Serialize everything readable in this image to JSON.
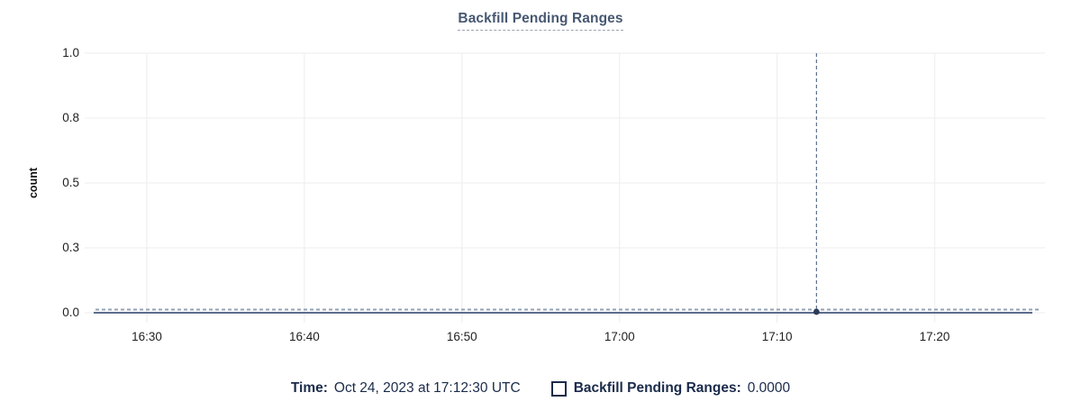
{
  "page": {
    "background": "#ffffff"
  },
  "chart_data": {
    "type": "line",
    "title": "Backfill Pending Ranges",
    "xlabel": "",
    "ylabel": "count",
    "ylim": [
      0,
      1
    ],
    "grid": true,
    "legend_position": "bottom-center",
    "x_domain_minutes_after_1600": [
      26.4,
      87.0
    ],
    "x_ticks": [
      {
        "minute": 30,
        "label": "16:30"
      },
      {
        "minute": 40,
        "label": "16:40"
      },
      {
        "minute": 50,
        "label": "16:50"
      },
      {
        "minute": 60,
        "label": "17:00"
      },
      {
        "minute": 70,
        "label": "17:10"
      },
      {
        "minute": 80,
        "label": "17:20"
      }
    ],
    "y_ticks": [
      {
        "value": 1.0,
        "label": "1.0"
      },
      {
        "value": 0.75,
        "label": "0.8"
      },
      {
        "value": 0.5,
        "label": "0.5"
      },
      {
        "value": 0.25,
        "label": "0.3"
      },
      {
        "value": 0.0,
        "label": "0.0"
      }
    ],
    "series": [
      {
        "name": "Backfill Pending Ranges",
        "constant_value": 0,
        "note": "flat line at zero across entire time window"
      }
    ],
    "hover": {
      "minute_after_1600": 72.5,
      "time_label": "Oct 24, 2023 at 17:12:30 UTC",
      "value": 0
    },
    "colors": {
      "title": "#475872",
      "grid": "#f0f0f0",
      "series_solid": "#46597c",
      "series_dashed": "#93a1b4",
      "crosshair": "#5b6f8c",
      "dot": "#2c3c59",
      "tick_text": "#1f1f1f",
      "legend_text": "#1a2b4a"
    }
  },
  "legend": {
    "time_label": "Time:",
    "time_value": "Oct 24, 2023 at 17:12:30 UTC",
    "series_label": "Backfill Pending Ranges:",
    "series_value": "0.0000"
  }
}
